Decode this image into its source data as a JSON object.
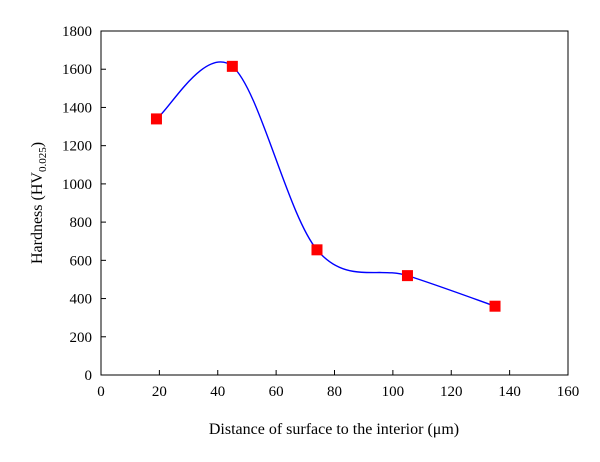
{
  "chart_data": {
    "type": "line",
    "x_axis": {
      "label": "Distance of surface to the interior (μm)",
      "range": [
        0,
        160
      ],
      "ticks": [
        0,
        20,
        40,
        60,
        80,
        100,
        120,
        140,
        160
      ]
    },
    "y_axis": {
      "label_main": "Hardness (HV",
      "label_sub": "0.025",
      "label_end": ")",
      "range": [
        0,
        1800
      ],
      "ticks": [
        0,
        200,
        400,
        600,
        800,
        1000,
        1200,
        1400,
        1600,
        1800
      ]
    },
    "series": [
      {
        "points": [
          {
            "x": 19,
            "y": 1340
          },
          {
            "x": 45,
            "y": 1615
          },
          {
            "x": 74,
            "y": 655
          },
          {
            "x": 105,
            "y": 520
          },
          {
            "x": 135,
            "y": 360
          }
        ],
        "marker": "square",
        "marker_color": "#ff0000",
        "line": "smooth",
        "line_color": "#0000ff"
      }
    ],
    "grid": false,
    "legend": "none"
  }
}
